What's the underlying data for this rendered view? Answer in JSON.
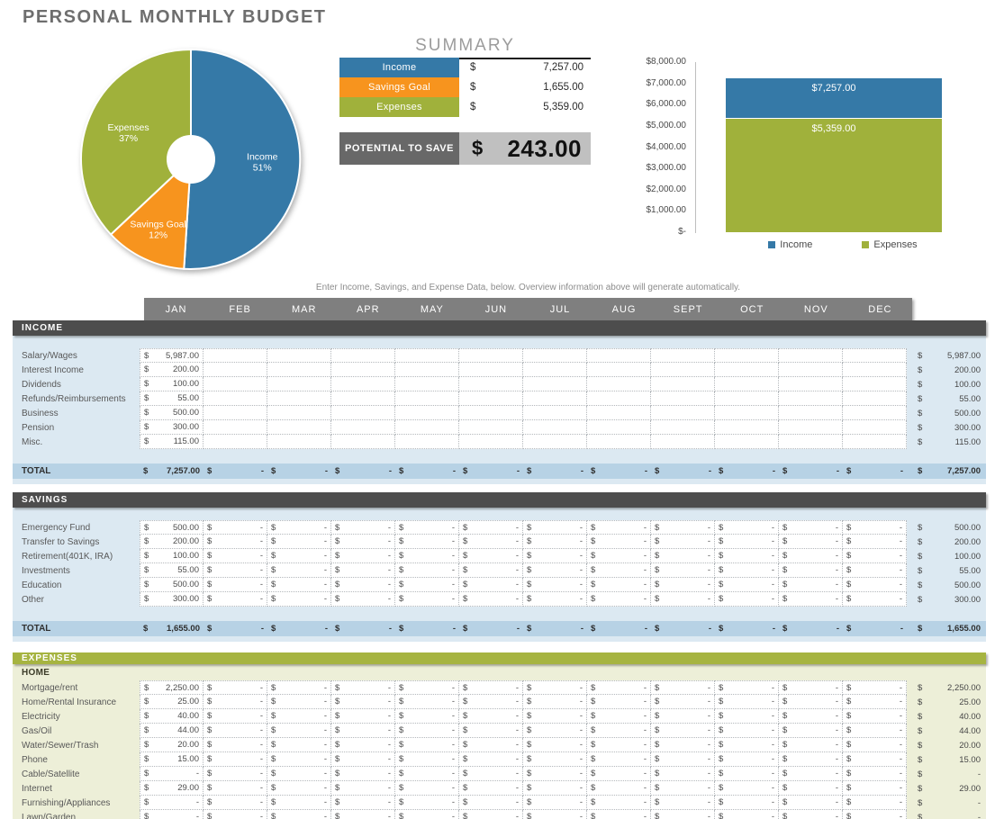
{
  "title": "PERSONAL MONTHLY BUDGET",
  "summary": {
    "heading": "SUMMARY",
    "rows": [
      {
        "label": "Income",
        "currency": "$",
        "value": "7,257.00",
        "color": "#3579a7"
      },
      {
        "label": "Savings Goal",
        "currency": "$",
        "value": "1,655.00",
        "color": "#f7941e"
      },
      {
        "label": "Expenses",
        "currency": "$",
        "value": "5,359.00",
        "color": "#a0b13b"
      }
    ],
    "potential": {
      "label": "POTENTIAL TO SAVE",
      "currency": "$",
      "value": "243.00"
    }
  },
  "note": "Enter Income, Savings, and Expense Data, below.  Overview information above will generate automatically.",
  "months": [
    "JAN",
    "FEB",
    "MAR",
    "APR",
    "MAY",
    "JUN",
    "JUL",
    "AUG",
    "SEPT",
    "OCT",
    "NOV",
    "DEC"
  ],
  "chart_data": [
    {
      "type": "pie",
      "subtype": "donut",
      "labels": [
        "Income",
        "Savings Goal",
        "Expenses"
      ],
      "values": [
        51,
        12,
        37
      ],
      "unit": "percent",
      "colors": [
        "#3579a7",
        "#f7941e",
        "#a0b13b"
      ],
      "start_angle_deg": 0,
      "direction": "clockwise",
      "legend_position": "none"
    },
    {
      "type": "bar",
      "subtype": "overlapped-single-column",
      "categories": [
        "Income",
        "Expenses"
      ],
      "values": [
        7257.0,
        5359.0
      ],
      "bar_labels": [
        "$7,257.00",
        "$5,359.00"
      ],
      "colors": [
        "#3579a7",
        "#a0b13b"
      ],
      "ylim": [
        0,
        8000
      ],
      "ytick_labels": [
        "$8,000.00",
        "$7,000.00",
        "$6,000.00",
        "$5,000.00",
        "$4,000.00",
        "$3,000.00",
        "$2,000.00",
        "$1,000.00",
        "$-"
      ],
      "grid": false,
      "legend": [
        "Income",
        "Expenses"
      ],
      "legend_position": "bottom"
    }
  ],
  "sections": {
    "income": {
      "header": "INCOME",
      "rows": [
        {
          "label": "Salary/Wages",
          "jan": "5,987.00",
          "rest": "",
          "year": "5,987.00"
        },
        {
          "label": "Interest Income",
          "jan": "200.00",
          "rest": "",
          "year": "200.00"
        },
        {
          "label": "Dividends",
          "jan": "100.00",
          "rest": "",
          "year": "100.00"
        },
        {
          "label": "Refunds/Reimbursements",
          "jan": "55.00",
          "rest": "",
          "year": "55.00"
        },
        {
          "label": "Business",
          "jan": "500.00",
          "rest": "",
          "year": "500.00"
        },
        {
          "label": "Pension",
          "jan": "300.00",
          "rest": "",
          "year": "300.00"
        },
        {
          "label": "Misc.",
          "jan": "115.00",
          "rest": "",
          "year": "115.00"
        }
      ],
      "total": {
        "label": "TOTAL",
        "jan": "7,257.00",
        "rest": "-",
        "year": "7,257.00"
      }
    },
    "savings": {
      "header": "SAVINGS",
      "rows": [
        {
          "label": "Emergency Fund",
          "jan": "500.00",
          "rest": "-",
          "year": "500.00"
        },
        {
          "label": "Transfer to Savings",
          "jan": "200.00",
          "rest": "-",
          "year": "200.00"
        },
        {
          "label": "Retirement(401K, IRA)",
          "jan": "100.00",
          "rest": "-",
          "year": "100.00"
        },
        {
          "label": "Investments",
          "jan": "55.00",
          "rest": "-",
          "year": "55.00"
        },
        {
          "label": "Education",
          "jan": "500.00",
          "rest": "-",
          "year": "500.00"
        },
        {
          "label": "Other",
          "jan": "300.00",
          "rest": "-",
          "year": "300.00"
        }
      ],
      "total": {
        "label": "TOTAL",
        "jan": "1,655.00",
        "rest": "-",
        "year": "1,655.00"
      }
    },
    "expenses": {
      "header": "EXPENSES",
      "subheader": "HOME",
      "rows": [
        {
          "label": "Mortgage/rent",
          "jan": "2,250.00",
          "rest": "-",
          "year": "2,250.00"
        },
        {
          "label": "Home/Rental Insurance",
          "jan": "25.00",
          "rest": "-",
          "year": "25.00"
        },
        {
          "label": "Electricity",
          "jan": "40.00",
          "rest": "-",
          "year": "40.00"
        },
        {
          "label": "Gas/Oil",
          "jan": "44.00",
          "rest": "-",
          "year": "44.00"
        },
        {
          "label": "Water/Sewer/Trash",
          "jan": "20.00",
          "rest": "-",
          "year": "20.00"
        },
        {
          "label": "Phone",
          "jan": "15.00",
          "rest": "-",
          "year": "15.00"
        },
        {
          "label": "Cable/Satellite",
          "jan": "-",
          "rest": "-",
          "year": "-"
        },
        {
          "label": "Internet",
          "jan": "29.00",
          "rest": "-",
          "year": "29.00"
        },
        {
          "label": "Furnishing/Appliances",
          "jan": "-",
          "rest": "-",
          "year": "-"
        },
        {
          "label": "Lawn/Garden",
          "jan": "-",
          "rest": "-",
          "year": "-"
        }
      ]
    }
  },
  "currency_symbol": "$"
}
